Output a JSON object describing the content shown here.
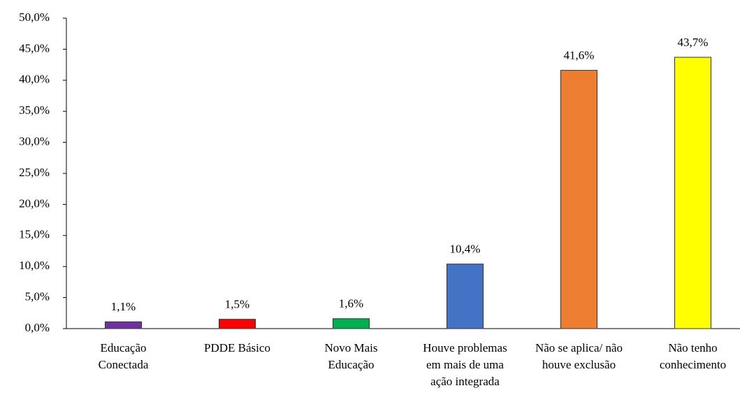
{
  "chart_data": {
    "type": "bar",
    "categories": [
      "Educação Conectada",
      "PDDE Básico",
      "Novo Mais Educação",
      "Houve problemas em mais de uma ação integrada",
      "Não se aplica/ não houve exclusão",
      "Não tenho conhecimento"
    ],
    "values": [
      1.1,
      1.5,
      1.6,
      10.4,
      41.6,
      43.7
    ],
    "value_labels": [
      "1,1%",
      "1,5%",
      "1,6%",
      "10,4%",
      "41,6%",
      "43,7%"
    ],
    "colors": [
      "#7030a0",
      "#ff0000",
      "#00b050",
      "#4472c4",
      "#ed7d31",
      "#ffff00"
    ],
    "ylim": [
      0,
      50
    ],
    "yticks": [
      {
        "value": 0,
        "label": "0,0%"
      },
      {
        "value": 5,
        "label": "5,0%"
      },
      {
        "value": 10,
        "label": "10,0%"
      },
      {
        "value": 15,
        "label": "15,0%"
      },
      {
        "value": 20,
        "label": "20,0%"
      },
      {
        "value": 25,
        "label": "25,0%"
      },
      {
        "value": 30,
        "label": "30,0%"
      },
      {
        "value": 35,
        "label": "35,0%"
      },
      {
        "value": 40,
        "label": "40,0%"
      },
      {
        "value": 45,
        "label": "45,0%"
      },
      {
        "value": 50,
        "label": "50,0%"
      }
    ],
    "grid": false
  }
}
